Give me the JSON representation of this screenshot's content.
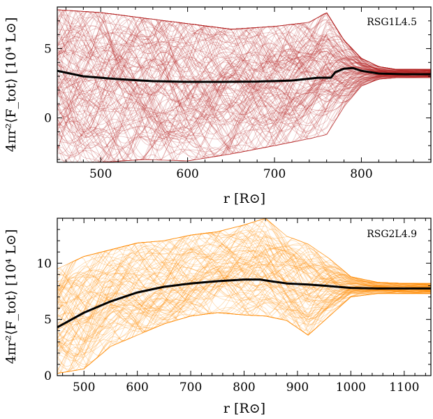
{
  "chart_data": [
    {
      "type": "line",
      "title": "",
      "annotation": "RSG1L4.5",
      "xlabel": "r [R⊙]",
      "ylabel": "4πr²⟨F_tot⟩ [10⁴ L⊙]",
      "xlim": [
        450,
        880
      ],
      "ylim": [
        -3.2,
        8
      ],
      "xticks": [
        500,
        600,
        700,
        800
      ],
      "yticks": [
        0,
        5
      ],
      "grid": false,
      "realization_color": "#b22222",
      "mean_color": "#000000",
      "series": [
        {
          "role": "mean",
          "x": [
            450,
            480,
            520,
            560,
            600,
            640,
            680,
            720,
            750,
            765,
            770,
            780,
            790,
            800,
            820,
            850,
            880
          ],
          "values": [
            3.4,
            3.0,
            2.8,
            2.65,
            2.6,
            2.6,
            2.62,
            2.7,
            2.9,
            2.9,
            3.3,
            3.55,
            3.6,
            3.4,
            3.2,
            3.15,
            3.15
          ]
        }
      ],
      "realization_envelope": {
        "x": [
          450,
          500,
          550,
          600,
          650,
          700,
          740,
          760,
          780,
          800,
          820,
          840,
          880
        ],
        "upper": [
          7.8,
          7.6,
          7.2,
          6.8,
          6.4,
          6.6,
          6.9,
          7.6,
          5.6,
          4.3,
          3.7,
          3.5,
          3.5
        ],
        "lower": [
          -3.2,
          -3.2,
          -3.0,
          -3.1,
          -2.6,
          -2.0,
          -1.5,
          -1.2,
          0.8,
          2.3,
          2.8,
          2.9,
          2.9
        ]
      }
    },
    {
      "type": "line",
      "title": "",
      "annotation": "RSG2L4.9",
      "xlabel": "r [R⊙]",
      "ylabel": "4πr²⟨F_tot⟩ [10⁴ L⊙]",
      "xlim": [
        450,
        1150
      ],
      "ylim": [
        0,
        14
      ],
      "xticks": [
        500,
        600,
        700,
        800,
        900,
        1000,
        1100
      ],
      "yticks": [
        0,
        5,
        10
      ],
      "grid": false,
      "realization_color": "#ff8c00",
      "mean_color": "#000000",
      "series": [
        {
          "role": "mean",
          "x": [
            450,
            500,
            550,
            600,
            650,
            700,
            750,
            800,
            830,
            850,
            880,
            900,
            920,
            950,
            1000,
            1050,
            1100,
            1150
          ],
          "values": [
            4.3,
            5.6,
            6.6,
            7.4,
            7.9,
            8.2,
            8.4,
            8.55,
            8.55,
            8.4,
            8.2,
            8.15,
            8.1,
            8.0,
            7.8,
            7.75,
            7.75,
            7.75
          ]
        }
      ],
      "realization_envelope": {
        "x": [
          450,
          500,
          550,
          600,
          650,
          700,
          750,
          800,
          840,
          880,
          920,
          960,
          1000,
          1050,
          1100,
          1150
        ],
        "upper": [
          9.5,
          10.6,
          11.2,
          11.8,
          12.0,
          12.5,
          12.8,
          13.4,
          14.0,
          12.4,
          11.7,
          10.4,
          8.8,
          8.3,
          8.2,
          8.2
        ],
        "lower": [
          0.2,
          0.6,
          2.6,
          3.6,
          4.6,
          5.3,
          5.6,
          5.4,
          5.3,
          4.9,
          3.6,
          5.3,
          7.0,
          7.3,
          7.3,
          7.3
        ]
      }
    }
  ]
}
